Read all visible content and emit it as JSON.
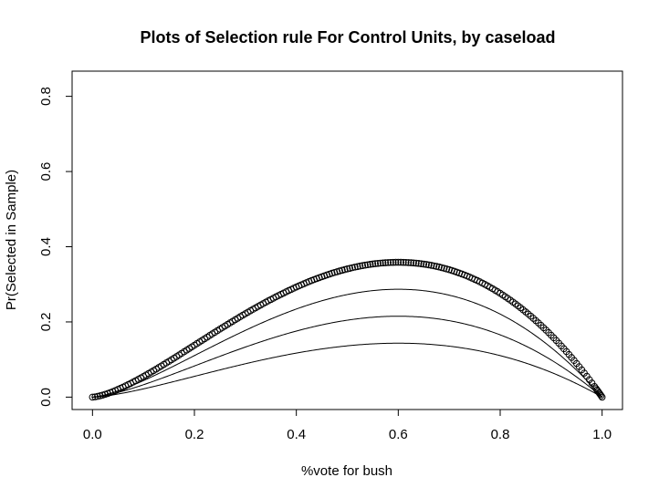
{
  "chart_data": {
    "type": "line",
    "title": "Plots of Selection rule For Control Units, by caseload",
    "xlabel": "%vote for bush",
    "ylabel": "Pr(Selected in Sample)",
    "xlim": [
      -0.04,
      1.04
    ],
    "ylim": [
      -0.033,
      0.867
    ],
    "x_ticks": [
      0.0,
      0.2,
      0.4,
      0.6,
      0.8,
      1.0
    ],
    "x_tick_labels": [
      "0.0",
      "0.2",
      "0.4",
      "0.6",
      "0.8",
      "1.0"
    ],
    "y_ticks": [
      0.0,
      0.2,
      0.4,
      0.6,
      0.8
    ],
    "y_tick_labels": [
      "0.0",
      "0.2",
      "0.4",
      "0.6",
      "0.8"
    ],
    "grid": false,
    "legend": "none",
    "curve_model": "Pr = peak * 2.3148 * (x^1.5 - x^2.5)",
    "series": [
      {
        "peak": 0.8333,
        "style": "points"
      },
      {
        "peak": 0.6667,
        "style": "line"
      },
      {
        "peak": 0.5,
        "style": "line"
      },
      {
        "peak": 0.3333,
        "style": "line"
      }
    ],
    "point_series_x": [
      0,
      0.005,
      0.01,
      0.015,
      0.02,
      0.025,
      0.03,
      0.035,
      0.04,
      0.045,
      0.05,
      0.055,
      0.06,
      0.065,
      0.07,
      0.075,
      0.08,
      0.085,
      0.09,
      0.095,
      0.1,
      0.105,
      0.11,
      0.115,
      0.12,
      0.125,
      0.13,
      0.135,
      0.14,
      0.145,
      0.15,
      0.155,
      0.16,
      0.165,
      0.17,
      0.175,
      0.18,
      0.185,
      0.19,
      0.195,
      0.2,
      0.205,
      0.21,
      0.215,
      0.22,
      0.225,
      0.23,
      0.235,
      0.24,
      0.245,
      0.25,
      0.255,
      0.26,
      0.265,
      0.27,
      0.275,
      0.28,
      0.285,
      0.29,
      0.295,
      0.3,
      0.305,
      0.31,
      0.315,
      0.32,
      0.325,
      0.33,
      0.335,
      0.34,
      0.345,
      0.35,
      0.355,
      0.36,
      0.365,
      0.37,
      0.375,
      0.38,
      0.385,
      0.39,
      0.395,
      0.4,
      0.405,
      0.41,
      0.415,
      0.42,
      0.425,
      0.43,
      0.435,
      0.44,
      0.445,
      0.45,
      0.455,
      0.46,
      0.465,
      0.47,
      0.475,
      0.48,
      0.485,
      0.49,
      0.495,
      0.5,
      0.505,
      0.51,
      0.515,
      0.52,
      0.525,
      0.53,
      0.535,
      0.54,
      0.545,
      0.55,
      0.555,
      0.56,
      0.565,
      0.57,
      0.575,
      0.58,
      0.585,
      0.59,
      0.595,
      0.6,
      0.605,
      0.61,
      0.615,
      0.62,
      0.625,
      0.63,
      0.635,
      0.64,
      0.645,
      0.65,
      0.655,
      0.66,
      0.665,
      0.67,
      0.675,
      0.68,
      0.685,
      0.69,
      0.695,
      0.7,
      0.705,
      0.71,
      0.715,
      0.72,
      0.725,
      0.73,
      0.735,
      0.74,
      0.745,
      0.75,
      0.755,
      0.76,
      0.765,
      0.77,
      0.775,
      0.78,
      0.785,
      0.79,
      0.795,
      0.8,
      0.805,
      0.81,
      0.815,
      0.82,
      0.825,
      0.83,
      0.835,
      0.84,
      0.845,
      0.85,
      0.855,
      0.86,
      0.865,
      0.87,
      0.875,
      0.88,
      0.885,
      0.89,
      0.895,
      0.9,
      0.905,
      0.91,
      0.915,
      0.92,
      0.925,
      0.93,
      0.935,
      0.94,
      0.945,
      0.95,
      0.955,
      0.96,
      0.965,
      0.97,
      0.975,
      0.98,
      0.985,
      0.988,
      0.99,
      0.992,
      0.994,
      0.996,
      0.998,
      1.0
    ],
    "colors": {
      "ink": "#000000",
      "background": "#ffffff"
    }
  }
}
